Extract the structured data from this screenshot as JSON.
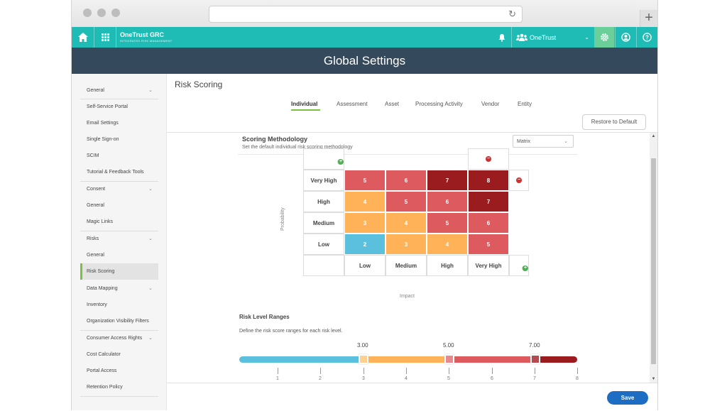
{
  "app": {
    "brand_name": "OneTrust GRC",
    "brand_sub": "INTEGRATED RISK MANAGEMENT",
    "org_label": "OneTrust",
    "page_header": "Global Settings"
  },
  "sidebar": {
    "items": [
      {
        "label": "General",
        "expandable": true
      },
      {
        "label": "Self-Service Portal"
      },
      {
        "label": "Email Settings"
      },
      {
        "label": "Single Sign-on"
      },
      {
        "label": "SCIM"
      },
      {
        "label": "Tutorial & Feedback Tools"
      },
      {
        "label": "Consent",
        "expandable": true
      },
      {
        "label": "General"
      },
      {
        "label": "Magic Links"
      },
      {
        "label": "Risks",
        "expandable": true
      },
      {
        "label": "General"
      },
      {
        "label": "Risk Scoring",
        "active": true
      },
      {
        "label": "Data Mapping",
        "expandable": true
      },
      {
        "label": "Inventory"
      },
      {
        "label": "Organization Visibility Filters"
      },
      {
        "label": "Consumer Access Rights",
        "expandable": true
      },
      {
        "label": "Cost Calculator"
      },
      {
        "label": "Portal Access"
      },
      {
        "label": "Retention Policy"
      }
    ]
  },
  "main": {
    "title": "Risk Scoring",
    "tabs": [
      "Individual",
      "Assessment",
      "Asset",
      "Processing Activity",
      "Vendor",
      "Entity"
    ],
    "active_tab": "Individual",
    "restore_label": "Restore to Default",
    "save_label": "Save"
  },
  "scoring": {
    "title": "Scoring Methodology",
    "description": "Set the default individual risk scoring methodology",
    "method_value": "Matrix"
  },
  "matrix": {
    "probability_label": "Probability",
    "impact_label": "Impact",
    "rows": [
      {
        "label": "Very High",
        "scores": [
          "5",
          "6",
          "7",
          "8"
        ]
      },
      {
        "label": "High",
        "scores": [
          "4",
          "5",
          "6",
          "7"
        ]
      },
      {
        "label": "Medium",
        "scores": [
          "3",
          "4",
          "5",
          "6"
        ]
      },
      {
        "label": "Low",
        "scores": [
          "2",
          "3",
          "4",
          "5"
        ]
      }
    ],
    "columns": [
      "Low",
      "Medium",
      "High",
      "Very High"
    ],
    "colors": {
      "low": "#5bc0de",
      "medium": "#ffb257",
      "high": "#dd5a5f",
      "very_high": "#9b1c1f"
    }
  },
  "ranges": {
    "title": "Risk Level Ranges",
    "description": "Define the risk score ranges for each risk level.",
    "thresholds": [
      "3.00",
      "5.00",
      "7.00"
    ],
    "ticks": [
      "1",
      "2",
      "3",
      "4",
      "5",
      "6",
      "7",
      "8"
    ]
  }
}
